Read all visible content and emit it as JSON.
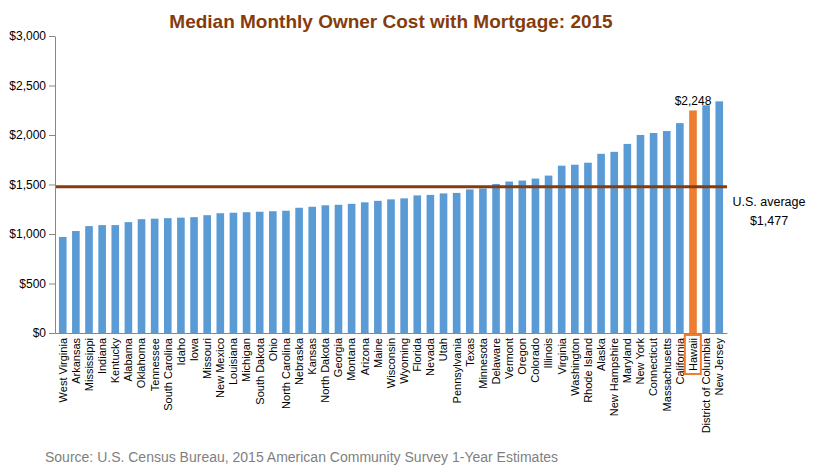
{
  "chart_data": {
    "type": "bar",
    "title": "Median Monthly Owner Cost with Mortgage: 2015",
    "categories": [
      "West Virginia",
      "Arkansas",
      "Mississippi",
      "Indiana",
      "Kentucky",
      "Alabama",
      "Oklahoma",
      "Tennessee",
      "South Carolina",
      "Idaho",
      "Iowa",
      "Missouri",
      "New Mexico",
      "Louisiana",
      "Michigan",
      "South Dakota",
      "Ohio",
      "North Carolina",
      "Nebraska",
      "Kansas",
      "North Dakota",
      "Georgia",
      "Montana",
      "Arizona",
      "Maine",
      "Wisconsin",
      "Wyoming",
      "Florida",
      "Nevada",
      "Utah",
      "Pennsylvania",
      "Texas",
      "Minnesota",
      "Delaware",
      "Vermont",
      "Oregon",
      "Colorado",
      "Illinois",
      "Virginia",
      "Washington",
      "Rhode Island",
      "Alaska",
      "New Hampshire",
      "Maryland",
      "New York",
      "Connecticut",
      "Massachusetts",
      "California",
      "Hawaii",
      "District of Columbia",
      "New Jersey"
    ],
    "values": [
      970,
      1030,
      1080,
      1090,
      1090,
      1120,
      1150,
      1155,
      1160,
      1165,
      1170,
      1190,
      1210,
      1215,
      1220,
      1225,
      1230,
      1235,
      1265,
      1275,
      1290,
      1295,
      1305,
      1320,
      1335,
      1350,
      1360,
      1390,
      1395,
      1410,
      1415,
      1450,
      1460,
      1505,
      1530,
      1540,
      1560,
      1590,
      1690,
      1700,
      1720,
      1810,
      1830,
      1910,
      2000,
      2020,
      2040,
      2120,
      2248,
      2300,
      2340
    ],
    "color": "#5b9bd5",
    "colors": [
      "#5b9bd5",
      "#5b9bd5",
      "#5b9bd5",
      "#5b9bd5",
      "#5b9bd5",
      "#5b9bd5",
      "#5b9bd5",
      "#5b9bd5",
      "#5b9bd5",
      "#5b9bd5",
      "#5b9bd5",
      "#5b9bd5",
      "#5b9bd5",
      "#5b9bd5",
      "#5b9bd5",
      "#5b9bd5",
      "#5b9bd5",
      "#5b9bd5",
      "#5b9bd5",
      "#5b9bd5",
      "#5b9bd5",
      "#5b9bd5",
      "#5b9bd5",
      "#5b9bd5",
      "#5b9bd5",
      "#5b9bd5",
      "#5b9bd5",
      "#5b9bd5",
      "#5b9bd5",
      "#5b9bd5",
      "#5b9bd5",
      "#5b9bd5",
      "#5b9bd5",
      "#5b9bd5",
      "#5b9bd5",
      "#5b9bd5",
      "#5b9bd5",
      "#5b9bd5",
      "#5b9bd5",
      "#5b9bd5",
      "#5b9bd5",
      "#5b9bd5",
      "#5b9bd5",
      "#5b9bd5",
      "#5b9bd5",
      "#5b9bd5",
      "#5b9bd5",
      "#5b9bd5",
      "#ed7d31",
      "#5b9bd5",
      "#5b9bd5"
    ],
    "ylim": [
      0,
      3000
    ],
    "yticks": [
      {
        "value": 0,
        "label": "$0"
      },
      {
        "value": 500,
        "label": "$500"
      },
      {
        "value": 1000,
        "label": "$1,000"
      },
      {
        "value": 1500,
        "label": "$1,500"
      },
      {
        "value": 2000,
        "label": "$2,000"
      },
      {
        "value": 2500,
        "label": "$2,500"
      },
      {
        "value": 3000,
        "label": "$3,000"
      }
    ],
    "grid": false,
    "annotations": [
      {
        "category": "Hawaii",
        "value": 2248,
        "text": "$2,248"
      }
    ],
    "reference_line": {
      "value": 1477,
      "label": "U.S. average",
      "value_label": "$1,477",
      "color": "#843c0c"
    },
    "source": "Source: U.S. Census Bureau, 2015 American Community Survey 1-Year Estimates"
  }
}
